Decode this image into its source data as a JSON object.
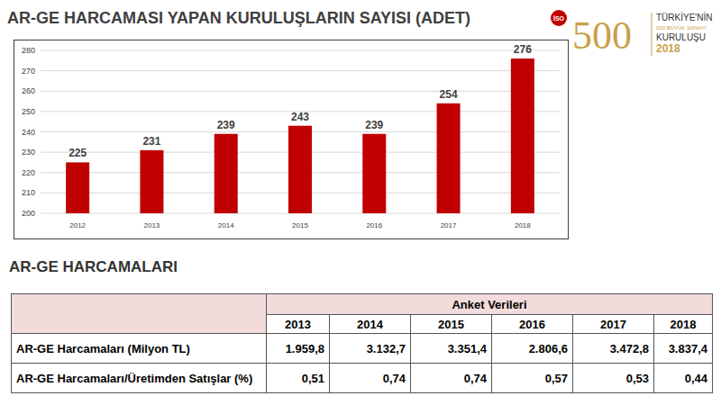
{
  "chart_data": {
    "type": "bar",
    "title": "AR-GE HARCAMASI YAPAN KURULUŞLARIN SAYISI (ADET)",
    "categories": [
      "2012",
      "2013",
      "2014",
      "2015",
      "2016",
      "2017",
      "2018"
    ],
    "values": [
      225,
      231,
      239,
      243,
      239,
      254,
      276
    ],
    "color": "#c00000",
    "ylim": [
      200,
      280
    ],
    "yticks": [
      200,
      210,
      220,
      230,
      240,
      250,
      260,
      270,
      280
    ],
    "grid": true,
    "data_labels": true
  },
  "logo": {
    "number": "500",
    "emblem": "İSO",
    "lines": [
      "TÜRKİYE'NİN",
      "500 BÜYÜK SANAYİ",
      "KURULUŞU",
      "2018"
    ]
  },
  "table": {
    "title": "AR-GE HARCAMALARI",
    "group_header": "Anket Verileri",
    "columns": [
      "2013",
      "2014",
      "2015",
      "2016",
      "2017",
      "2018"
    ],
    "rows": [
      [
        "AR-GE Harcamaları (Milyon TL)",
        "1.959,8",
        "3.132,7",
        "3.351,4",
        "2.806,6",
        "3.472,8",
        "3.837,4"
      ],
      [
        "AR-GE Harcamaları/Üretimden Satışlar (%)",
        "0,51",
        "0,74",
        "0,74",
        "0,57",
        "0,53",
        "0,44"
      ]
    ]
  }
}
